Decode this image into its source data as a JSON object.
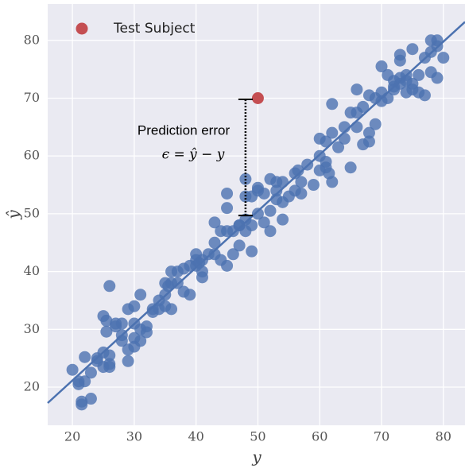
{
  "chart_data": {
    "type": "scatter",
    "xlabel": "y",
    "ylabel": "ŷ",
    "xlim": [
      16,
      83.5
    ],
    "ylim": [
      13.4,
      86.3
    ],
    "xticks": [
      20,
      30,
      40,
      50,
      60,
      70,
      80
    ],
    "yticks": [
      20,
      30,
      40,
      50,
      60,
      70,
      80
    ],
    "grid": true,
    "legend": "upper left",
    "series": [
      {
        "color": "#4c72b0",
        "x": [
          20,
          21,
          21,
          21.5,
          21.5,
          22,
          22,
          23,
          23,
          24,
          24,
          25,
          25,
          25,
          25.5,
          25.5,
          26,
          26,
          26,
          26,
          27,
          27,
          28,
          28,
          28,
          29,
          29,
          29,
          30,
          30,
          30,
          30,
          31,
          31,
          31,
          32,
          32,
          33,
          33,
          34,
          34,
          35,
          35,
          35,
          35.5,
          36,
          36,
          36,
          37,
          37,
          38,
          38,
          39,
          39,
          40,
          40,
          40,
          40.5,
          41,
          41,
          41,
          42,
          43,
          43,
          43,
          44,
          44,
          45,
          45,
          45,
          45,
          46,
          46,
          47,
          47,
          47,
          48,
          48,
          48,
          48,
          49,
          49,
          49,
          50,
          50,
          50,
          51,
          51,
          52,
          52,
          52,
          53,
          53,
          53,
          54,
          54,
          54,
          55,
          56,
          56,
          56.5,
          57,
          57,
          58,
          59,
          60,
          60,
          60,
          61,
          61,
          61,
          61.5,
          62,
          62,
          62,
          63,
          64,
          64,
          65,
          65,
          66,
          66,
          66,
          67,
          67,
          68,
          68,
          68,
          69,
          69,
          70,
          70,
          70,
          71,
          71,
          72,
          72,
          72,
          73,
          73,
          73,
          73,
          74,
          74,
          74,
          75,
          75,
          75,
          76,
          76,
          77,
          77,
          78,
          78,
          78,
          79,
          79,
          79,
          80
        ],
        "values": [
          23,
          20.5,
          21,
          17.5,
          17,
          25.2,
          21,
          18,
          22.5,
          24.5,
          25,
          26,
          23.5,
          32.3,
          29.6,
          31.5,
          24,
          23.5,
          25.5,
          37.5,
          30.5,
          31,
          31,
          28,
          29,
          24.5,
          26.5,
          33.5,
          34,
          31,
          27,
          28.5,
          36,
          30,
          28,
          29.5,
          30.5,
          33,
          33.5,
          33.5,
          35,
          36,
          38,
          34,
          37.5,
          33.5,
          40,
          38,
          38,
          40,
          40.5,
          36.5,
          41,
          36,
          43,
          42,
          41,
          41.5,
          40,
          42,
          39,
          43,
          45,
          48.5,
          43,
          42,
          47,
          41,
          47,
          51,
          53.5,
          47,
          43,
          48,
          48,
          44.5,
          49,
          47,
          56,
          53,
          48,
          53,
          43.5,
          50,
          54,
          54.5,
          53.5,
          48.5,
          50.5,
          56,
          47,
          52.5,
          54,
          55.5,
          55.5,
          52,
          49,
          53,
          57,
          54,
          57.5,
          53.5,
          55.5,
          58.5,
          55,
          60,
          57.5,
          63,
          59,
          58,
          62.5,
          57,
          64,
          55.5,
          69,
          61.5,
          63,
          65,
          58,
          67.5,
          65,
          71.5,
          67.5,
          62,
          68.5,
          64,
          62.5,
          70.5,
          65.5,
          70,
          75.5,
          69.5,
          71,
          70,
          74,
          72,
          73,
          71.5,
          73.5,
          76.5,
          77.5,
          72.5,
          74,
          71,
          73,
          71.5,
          72.5,
          78.5,
          71,
          74,
          70.5,
          77,
          80,
          78,
          74.5,
          80,
          73.5,
          79,
          77
        ]
      },
      {
        "name": "Test Subject",
        "color": "#c44e52",
        "x": [
          50
        ],
        "values": [
          70
        ]
      }
    ],
    "fit_line": {
      "x": [
        16,
        83.5
      ],
      "y": [
        17.25,
        83.2
      ]
    },
    "error_bar": {
      "x": 48,
      "y": [
        49.7,
        69.8
      ]
    },
    "annotation": {
      "title": "Prediction error",
      "formula": "ϵ = ŷ − y"
    }
  }
}
